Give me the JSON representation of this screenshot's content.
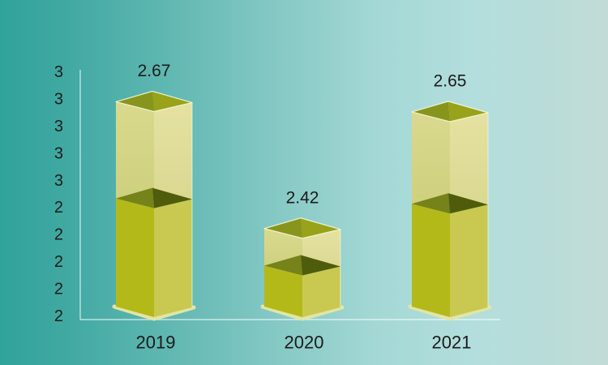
{
  "chart_data": {
    "type": "bar",
    "style": "3d-box-stacked-look",
    "title": "",
    "xlabel": "",
    "ylabel": "",
    "categories": [
      "2019",
      "2020",
      "2021"
    ],
    "values": [
      2.67,
      2.42,
      2.65
    ],
    "data_labels": [
      "2.67",
      "2.42",
      "2.65"
    ],
    "y_tick_labels": [
      "3",
      "3",
      "3",
      "3",
      "3",
      "2",
      "2",
      "2",
      "2",
      "2"
    ],
    "y_ticks_implied_values": [
      3.0,
      2.9,
      2.8,
      2.7,
      2.6,
      2.5,
      2.4,
      2.3,
      2.2,
      2.1
    ],
    "ylim": [
      2.0,
      3.0
    ],
    "grid": false,
    "legend": false,
    "colors": {
      "background_gradient": [
        "#2fa39b",
        "#3fa8a1",
        "#5bb5af",
        "#84c8c4",
        "#a4d8d5",
        "#b3dedd",
        "#b9dcd9",
        "#c3dbd7"
      ],
      "axis_line": "rgba(255,255,255,0.65)",
      "text": "#1b1b1b",
      "bar_top_left": "#87951d",
      "bar_top_right": "#98a21a",
      "bar_upper_left_top": "#dad98e",
      "bar_upper_left_bottom": "#ccd07c",
      "bar_upper_right_top": "#e5e2a2",
      "bar_upper_right_bottom": "#d9d78f",
      "bar_cut_left": "#76821a",
      "bar_cut_right": "#4f5c0c",
      "bar_lower_left": "#b4b91a",
      "bar_lower_right": "#c9c951",
      "bar_edge_highlight": "rgba(248,250,215,0.85)",
      "bar_side_highlight": "rgba(248,250,215,0.55)",
      "bar_bottom_halo": "#e2e5a6"
    }
  }
}
